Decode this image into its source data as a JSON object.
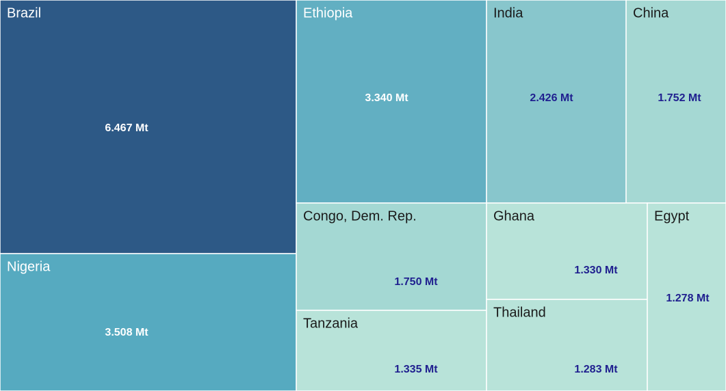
{
  "chart_data": {
    "type": "treemap",
    "categories": [
      "Brazil",
      "Nigeria",
      "Ethiopia",
      "India",
      "China",
      "Congo, Dem. Rep.",
      "Tanzania",
      "Ghana",
      "Thailand",
      "Egypt"
    ],
    "values": [
      6.467,
      3.508,
      3.34,
      2.426,
      1.752,
      1.75,
      1.335,
      1.33,
      1.283,
      1.278
    ],
    "value_labels": [
      "6.467 Mt",
      "3.508 Mt",
      "3.340 Mt",
      "2.426 Mt",
      "1.752 Mt",
      "1.750 Mt",
      "1.335 Mt",
      "1.330 Mt",
      "1.283 Mt",
      "1.278 Mt"
    ],
    "colors": [
      "#2d5986",
      "#56aac0",
      "#62afc2",
      "#88c6cc",
      "#a5d8d3",
      "#a4d8d3",
      "#b8e3d9",
      "#b8e3d9",
      "#b8e3d9",
      "#b8e3d9"
    ]
  }
}
